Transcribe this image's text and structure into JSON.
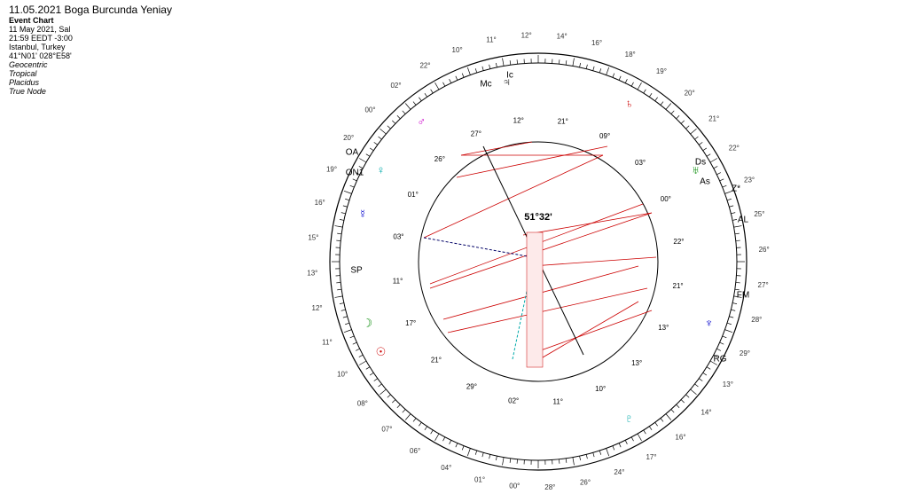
{
  "header": {
    "title": "11.05.2021 Boga Burcunda Yeniay",
    "subtitle": "Event Chart",
    "lines": [
      "11 May 2021, Sal",
      "21:59  EEDT -3:00",
      "Istanbul, Turkey",
      "41°N01' 028°E58'"
    ],
    "settings": [
      "Geocentric",
      "Tropical",
      "Placidus",
      "True Node"
    ]
  },
  "wheel": {
    "center_label": "51°32'",
    "angles": [
      "Mc",
      "Ic",
      "Ds",
      "As"
    ],
    "points": [
      "OA",
      "ON1",
      "SP",
      "FM",
      "AL",
      "RG",
      "Z*"
    ],
    "planets": [
      "☉",
      "☽",
      "☿",
      "♀",
      "♂",
      "♃",
      "♄",
      "♅",
      "♆",
      "♇"
    ],
    "inner_degrees": [
      "21°",
      "09°",
      "03°",
      "00°",
      "22°",
      "21°",
      "13°",
      "13°",
      "10°",
      "11°",
      "02°",
      "29°",
      "21°",
      "17°",
      "11°",
      "03°",
      "01°",
      "26°",
      "27°",
      "12°"
    ],
    "outer_degrees": [
      "22°",
      "10°",
      "11°",
      "12°",
      "14°",
      "16°",
      "18°",
      "19°",
      "20°",
      "21°",
      "22°",
      "23°",
      "25°",
      "26°",
      "27°",
      "28°",
      "29°",
      "13°",
      "14°",
      "16°",
      "17°",
      "24°",
      "26°",
      "28°",
      "00°",
      "01°",
      "04°",
      "06°",
      "07°",
      "08°",
      "10°",
      "11°",
      "12°",
      "13°",
      "15°",
      "16°",
      "19°",
      "20°",
      "00°",
      "02°"
    ]
  }
}
